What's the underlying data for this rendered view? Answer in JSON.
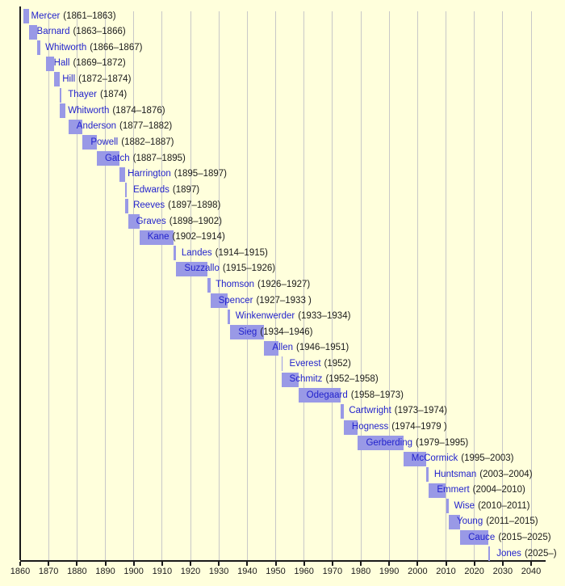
{
  "figure": {
    "background_color": "#FFFFDC",
    "grid_color": "#C8C8C8",
    "axis_color": "#1A1A1A",
    "bar_color": "#9999E6",
    "name_color": "#2222CC",
    "years_color": "#1A1A1A"
  },
  "chart_data": {
    "type": "bar",
    "subtype": "timeline-gantt",
    "title": "",
    "xlabel": "",
    "ylabel": "",
    "grid": true,
    "xlim": [
      1860,
      2045
    ],
    "x_ticks": [
      1860,
      1870,
      1880,
      1890,
      1900,
      1910,
      1920,
      1930,
      1940,
      1950,
      1960,
      1970,
      1980,
      1990,
      2000,
      2010,
      2020,
      2030,
      2040
    ],
    "entries": [
      {
        "name": "Mercer",
        "years": "(1861–1863)",
        "start": 1861,
        "end": 1863
      },
      {
        "name": "Barnard",
        "years": "(1863–1866)",
        "start": 1863,
        "end": 1866
      },
      {
        "name": "Whitworth",
        "years": "(1866–1867)",
        "start": 1866,
        "end": 1867
      },
      {
        "name": "Hall",
        "years": "(1869–1872)",
        "start": 1869,
        "end": 1872
      },
      {
        "name": "Hill",
        "years": "(1872–1874)",
        "start": 1872,
        "end": 1874
      },
      {
        "name": "Thayer",
        "years": "(1874)",
        "start": 1874,
        "end": 1874
      },
      {
        "name": "Whitworth",
        "years": "(1874–1876)",
        "start": 1874,
        "end": 1876
      },
      {
        "name": "Anderson",
        "years": "(1877–1882)",
        "start": 1877,
        "end": 1882
      },
      {
        "name": "Powell",
        "years": "(1882–1887)",
        "start": 1882,
        "end": 1887
      },
      {
        "name": "Gatch",
        "years": "(1887–1895)",
        "start": 1887,
        "end": 1895
      },
      {
        "name": "Harrington",
        "years": "(1895–1897)",
        "start": 1895,
        "end": 1897
      },
      {
        "name": "Edwards",
        "years": "(1897)",
        "start": 1897,
        "end": 1897
      },
      {
        "name": "Reeves",
        "years": "(1897–1898)",
        "start": 1897,
        "end": 1898
      },
      {
        "name": "Graves",
        "years": "(1898–1902)",
        "start": 1898,
        "end": 1902
      },
      {
        "name": "Kane",
        "years": "(1902–1914)",
        "start": 1902,
        "end": 1914
      },
      {
        "name": "Landes",
        "years": "(1914–1915)",
        "start": 1914,
        "end": 1915
      },
      {
        "name": "Suzzallo",
        "years": "(1915–1926)",
        "start": 1915,
        "end": 1926
      },
      {
        "name": "Thomson",
        "years": "(1926–1927)",
        "start": 1926,
        "end": 1927
      },
      {
        "name": "Spencer",
        "years": "(1927–1933 )",
        "start": 1927,
        "end": 1933
      },
      {
        "name": "Winkenwerder",
        "years": "(1933–1934)",
        "start": 1933,
        "end": 1934
      },
      {
        "name": "Sieg",
        "years": "(1934–1946)",
        "start": 1934,
        "end": 1946
      },
      {
        "name": "Allen",
        "years": "(1946–1951)",
        "start": 1946,
        "end": 1951
      },
      {
        "name": "Everest",
        "years": "(1952)",
        "start": 1952,
        "end": 1952
      },
      {
        "name": "Schmitz",
        "years": "(1952–1958)",
        "start": 1952,
        "end": 1958
      },
      {
        "name": "Odegaard",
        "years": "(1958–1973)",
        "start": 1958,
        "end": 1973
      },
      {
        "name": "Cartwright",
        "years": "(1973–1974)",
        "start": 1973,
        "end": 1974
      },
      {
        "name": "Hogness",
        "years": "(1974–1979 )",
        "start": 1974,
        "end": 1979
      },
      {
        "name": "Gerberding",
        "years": "(1979–1995)",
        "start": 1979,
        "end": 1995
      },
      {
        "name": "McCormick",
        "years": "(1995–2003)",
        "start": 1995,
        "end": 2003
      },
      {
        "name": "Huntsman",
        "years": "(2003–2004)",
        "start": 2003,
        "end": 2004
      },
      {
        "name": "Emmert",
        "years": "(2004–2010)",
        "start": 2004,
        "end": 2010
      },
      {
        "name": "Wise",
        "years": "(2010–2011)",
        "start": 2010,
        "end": 2011
      },
      {
        "name": "Young",
        "years": "(2011–2015)",
        "start": 2011,
        "end": 2015
      },
      {
        "name": "Cauce",
        "years": "(2015–2025)",
        "start": 2015,
        "end": 2025
      },
      {
        "name": "Jones",
        "years": "(2025–)",
        "start": 2025,
        "end": 2025,
        "ongoing": true
      }
    ]
  }
}
